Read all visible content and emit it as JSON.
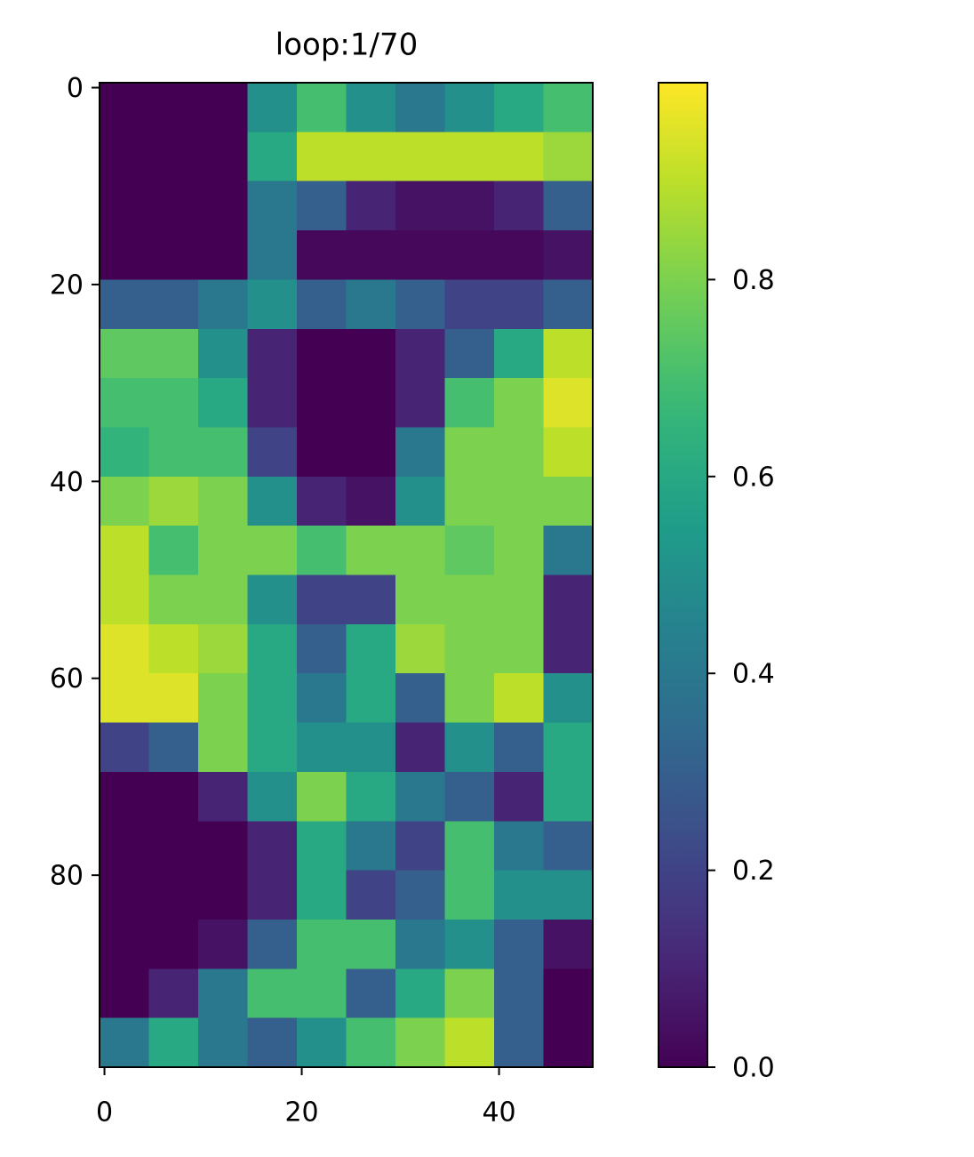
{
  "chart_data": {
    "type": "heatmap",
    "title": "loop:1/70",
    "cmap": "viridis",
    "x_edges": [
      -0.5,
      4.5,
      9.5,
      14.5,
      19.5,
      24.5,
      29.5,
      34.5,
      39.5,
      44.5,
      49.5
    ],
    "y_edges": [
      -0.5,
      4.5,
      9.5,
      14.5,
      19.5,
      24.5,
      29.5,
      34.5,
      39.5,
      44.5,
      49.5,
      54.5,
      59.5,
      64.5,
      69.5,
      74.5,
      79.5,
      84.5,
      89.5,
      94.5,
      99.5
    ],
    "values": [
      [
        0,
        0,
        0,
        0.5,
        0.7,
        0.5,
        0.4,
        0.5,
        0.6,
        0.7
      ],
      [
        0,
        0,
        0,
        0.6,
        0.9,
        0.9,
        0.9,
        0.9,
        0.9,
        0.85
      ],
      [
        0,
        0,
        0,
        0.4,
        0.3,
        0.1,
        0.05,
        0.05,
        0.1,
        0.3
      ],
      [
        0,
        0,
        0,
        0.4,
        0.02,
        0.02,
        0.02,
        0.02,
        0.02,
        0.05
      ],
      [
        0.3,
        0.3,
        0.4,
        0.5,
        0.3,
        0.4,
        0.3,
        0.2,
        0.2,
        0.3
      ],
      [
        0.75,
        0.75,
        0.5,
        0.1,
        0,
        0,
        0.1,
        0.3,
        0.6,
        0.9
      ],
      [
        0.7,
        0.7,
        0.6,
        0.1,
        0,
        0,
        0.1,
        0.7,
        0.8,
        0.95
      ],
      [
        0.65,
        0.7,
        0.7,
        0.2,
        0,
        0,
        0.4,
        0.8,
        0.8,
        0.9
      ],
      [
        0.8,
        0.85,
        0.8,
        0.5,
        0.1,
        0.05,
        0.5,
        0.8,
        0.8,
        0.8
      ],
      [
        0.9,
        0.7,
        0.8,
        0.8,
        0.7,
        0.8,
        0.8,
        0.75,
        0.8,
        0.4
      ],
      [
        0.9,
        0.8,
        0.8,
        0.5,
        0.2,
        0.2,
        0.8,
        0.8,
        0.8,
        0.1
      ],
      [
        0.95,
        0.9,
        0.85,
        0.6,
        0.3,
        0.6,
        0.85,
        0.8,
        0.8,
        0.1
      ],
      [
        0.95,
        0.95,
        0.8,
        0.6,
        0.4,
        0.6,
        0.3,
        0.8,
        0.9,
        0.5
      ],
      [
        0.2,
        0.3,
        0.8,
        0.6,
        0.5,
        0.5,
        0.1,
        0.5,
        0.3,
        0.6
      ],
      [
        0,
        0,
        0.1,
        0.5,
        0.8,
        0.6,
        0.4,
        0.3,
        0.1,
        0.6
      ],
      [
        0,
        0,
        0,
        0.1,
        0.6,
        0.4,
        0.2,
        0.7,
        0.4,
        0.3
      ],
      [
        0,
        0,
        0,
        0.1,
        0.6,
        0.2,
        0.3,
        0.7,
        0.5,
        0.5
      ],
      [
        0,
        0,
        0.05,
        0.3,
        0.7,
        0.7,
        0.4,
        0.5,
        0.3,
        0.05
      ],
      [
        0,
        0.1,
        0.4,
        0.7,
        0.7,
        0.3,
        0.6,
        0.8,
        0.3,
        0
      ],
      [
        0.4,
        0.6,
        0.4,
        0.3,
        0.5,
        0.7,
        0.8,
        0.9,
        0.3,
        0
      ]
    ],
    "xlim": [
      -0.5,
      49.5
    ],
    "ylim": [
      99.5,
      -0.5
    ],
    "xticks": [
      0,
      20,
      40
    ],
    "yticks": [
      0,
      20,
      40,
      60,
      80
    ],
    "clim": [
      0,
      1
    ],
    "cticks": [
      {
        "value": 0,
        "label": "0.0"
      },
      0.2,
      0.4,
      0.6,
      0.8
    ]
  }
}
